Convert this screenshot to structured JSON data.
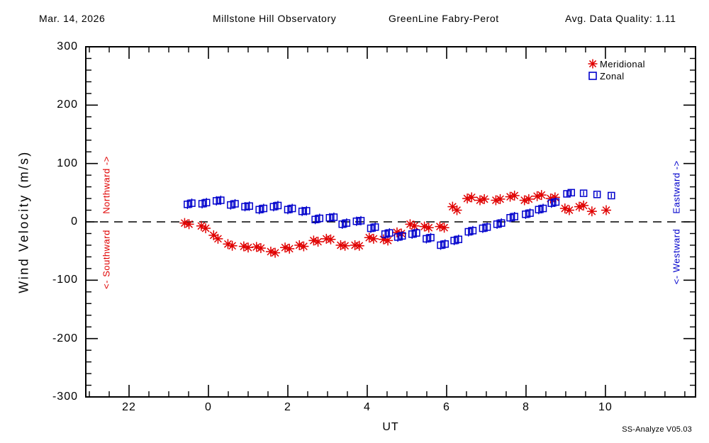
{
  "header": {
    "date": "Mar. 14, 2026",
    "observatory": "Millstone Hill Observatory",
    "instrument": "GreenLine Fabry-Perot",
    "quality": "Avg. Data Quality: 1.11"
  },
  "legend": {
    "meridional": "Meridional",
    "zonal": "Zonal"
  },
  "side_labels": {
    "left_upper": "Northward ->",
    "left_lower": "<- Southward",
    "right_upper": "Eastward ->",
    "right_lower": "<- Westward"
  },
  "footer": "SS-Analyze V05.03",
  "colors": {
    "meridional": "#e00000",
    "zonal": "#0000cc",
    "axis": "#000000",
    "background": "#ffffff"
  },
  "chart_data": {
    "type": "scatter",
    "xlabel": "UT",
    "ylabel": "Wind Velocity (m/s)",
    "ylim": [
      -300,
      300
    ],
    "y_major_step": 100,
    "y_minor_step": 20,
    "y_ticks": [
      {
        "v": 300,
        "label": "300"
      },
      {
        "v": 200,
        "label": "200"
      },
      {
        "v": 100,
        "label": "100"
      },
      {
        "v": 0,
        "label": "0"
      },
      {
        "v": -100,
        "label": "-100"
      },
      {
        "v": -200,
        "label": "-200"
      },
      {
        "v": -300,
        "label": "-300"
      }
    ],
    "x_range": [
      -3.09,
      12.27
    ],
    "x_minor_step": 0.5,
    "x_ticks": [
      {
        "t": -2,
        "label": "22"
      },
      {
        "t": 0,
        "label": "0"
      },
      {
        "t": 2,
        "label": "2"
      },
      {
        "t": 4,
        "label": "4"
      },
      {
        "t": 6,
        "label": "6"
      },
      {
        "t": 8,
        "label": "8"
      },
      {
        "t": 10,
        "label": "10"
      }
    ],
    "zero_line_dashed": true,
    "grid": false,
    "legend_position": "top-right",
    "series": [
      {
        "name": "Meridional",
        "marker": "asterisk",
        "color": "#e00000",
        "columns": [
          "ut_hour",
          "velocity_ms"
        ],
        "points": [
          [
            -0.6,
            -2
          ],
          [
            -0.49,
            -4
          ],
          [
            -0.18,
            -7
          ],
          [
            -0.07,
            -11
          ],
          [
            0.13,
            -23
          ],
          [
            0.24,
            -29
          ],
          [
            0.49,
            -38
          ],
          [
            0.6,
            -41
          ],
          [
            0.89,
            -42
          ],
          [
            1.0,
            -44
          ],
          [
            1.21,
            -43
          ],
          [
            1.32,
            -45
          ],
          [
            1.57,
            -51
          ],
          [
            1.68,
            -53
          ],
          [
            1.93,
            -44
          ],
          [
            2.04,
            -46
          ],
          [
            2.29,
            -40
          ],
          [
            2.4,
            -42
          ],
          [
            2.65,
            -32
          ],
          [
            2.76,
            -34
          ],
          [
            2.97,
            -29
          ],
          [
            3.08,
            -30
          ],
          [
            3.33,
            -40
          ],
          [
            3.44,
            -41
          ],
          [
            3.69,
            -40
          ],
          [
            3.8,
            -41
          ],
          [
            4.05,
            -27
          ],
          [
            4.16,
            -29
          ],
          [
            4.41,
            -30
          ],
          [
            4.52,
            -32
          ],
          [
            4.75,
            -18
          ],
          [
            4.86,
            -20
          ],
          [
            5.08,
            -4
          ],
          [
            5.19,
            -7
          ],
          [
            5.44,
            -8
          ],
          [
            5.55,
            -10
          ],
          [
            5.83,
            -8
          ],
          [
            5.94,
            -10
          ],
          [
            6.15,
            26
          ],
          [
            6.26,
            20
          ],
          [
            6.52,
            40
          ],
          [
            6.63,
            42
          ],
          [
            6.84,
            37
          ],
          [
            6.95,
            39
          ],
          [
            7.24,
            37
          ],
          [
            7.35,
            39
          ],
          [
            7.6,
            43
          ],
          [
            7.71,
            45
          ],
          [
            7.96,
            37
          ],
          [
            8.07,
            39
          ],
          [
            8.28,
            44
          ],
          [
            8.39,
            46
          ],
          [
            8.62,
            40
          ],
          [
            8.73,
            42
          ],
          [
            8.98,
            23
          ],
          [
            9.09,
            20
          ],
          [
            9.34,
            26
          ],
          [
            9.45,
            28
          ],
          [
            9.66,
            18
          ],
          [
            10.02,
            20
          ]
        ]
      },
      {
        "name": "Zonal",
        "marker": "open-square",
        "color": "#0000cc",
        "columns": [
          "ut_hour",
          "velocity_ms",
          "err_ms"
        ],
        "points": [
          [
            -0.53,
            30,
            8
          ],
          [
            -0.42,
            32,
            8
          ],
          [
            -0.16,
            31,
            8
          ],
          [
            -0.05,
            33,
            8
          ],
          [
            0.2,
            36,
            8
          ],
          [
            0.31,
            37,
            8
          ],
          [
            0.56,
            29,
            8
          ],
          [
            0.67,
            31,
            8
          ],
          [
            0.92,
            26,
            8
          ],
          [
            1.03,
            27,
            8
          ],
          [
            1.28,
            21,
            8
          ],
          [
            1.39,
            23,
            8
          ],
          [
            1.64,
            26,
            8
          ],
          [
            1.75,
            28,
            8
          ],
          [
            2.0,
            21,
            8
          ],
          [
            2.11,
            23,
            8
          ],
          [
            2.36,
            18,
            8
          ],
          [
            2.47,
            19,
            8
          ],
          [
            2.69,
            4,
            8
          ],
          [
            2.8,
            6,
            8
          ],
          [
            3.05,
            7,
            8
          ],
          [
            3.16,
            8,
            8
          ],
          [
            3.37,
            -4,
            8
          ],
          [
            3.48,
            -2,
            8
          ],
          [
            3.73,
            1,
            8
          ],
          [
            3.84,
            2,
            8
          ],
          [
            4.09,
            -11,
            8
          ],
          [
            4.2,
            -9,
            8
          ],
          [
            4.45,
            -21,
            8
          ],
          [
            4.56,
            -19,
            8
          ],
          [
            4.77,
            -26,
            8
          ],
          [
            4.88,
            -24,
            8
          ],
          [
            5.13,
            -21,
            8
          ],
          [
            5.24,
            -19,
            8
          ],
          [
            5.49,
            -29,
            8
          ],
          [
            5.6,
            -27,
            8
          ],
          [
            5.85,
            -40,
            8
          ],
          [
            5.96,
            -38,
            8
          ],
          [
            6.19,
            -32,
            8
          ],
          [
            6.3,
            -30,
            8
          ],
          [
            6.55,
            -17,
            8
          ],
          [
            6.66,
            -15,
            8
          ],
          [
            6.91,
            -11,
            8
          ],
          [
            7.02,
            -9,
            8
          ],
          [
            7.27,
            -4,
            8
          ],
          [
            7.38,
            -2,
            8
          ],
          [
            7.6,
            7,
            8
          ],
          [
            7.71,
            9,
            8
          ],
          [
            7.99,
            13,
            8
          ],
          [
            8.1,
            15,
            8
          ],
          [
            8.32,
            21,
            8
          ],
          [
            8.43,
            23,
            8
          ],
          [
            8.64,
            32,
            8
          ],
          [
            8.75,
            34,
            8
          ],
          [
            9.03,
            48,
            6
          ],
          [
            9.14,
            50,
            6
          ],
          [
            9.45,
            49,
            4
          ],
          [
            9.79,
            47,
            4
          ],
          [
            10.15,
            45,
            4
          ]
        ]
      }
    ]
  }
}
